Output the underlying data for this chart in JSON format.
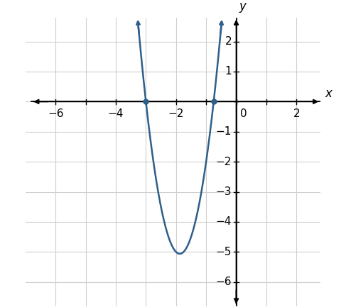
{
  "xlabel": "x",
  "ylabel": "y",
  "xlim": [
    -7.0,
    2.8
  ],
  "ylim": [
    -6.8,
    2.8
  ],
  "x_axis_range": [
    -6.5,
    2.5
  ],
  "y_axis_range": [
    -6.5,
    2.5
  ],
  "xticks": [
    -6,
    -5,
    -4,
    -3,
    -2,
    -1,
    0,
    1,
    2
  ],
  "xtick_labels": [
    "−6",
    "",
    "−4",
    "",
    "−2",
    "",
    "0",
    "",
    "2"
  ],
  "yticks": [
    -6,
    -5,
    -4,
    -3,
    -2,
    -1,
    0,
    1,
    2
  ],
  "ytick_labels": [
    "−6",
    "−5",
    "−4",
    "−3",
    "−2",
    "−1",
    "0",
    "1",
    "2"
  ],
  "curve_color": "#2e5f8a",
  "curve_linewidth": 1.8,
  "intercept1": [
    -3.0,
    0.0
  ],
  "intercept2": [
    -0.75,
    0.0
  ],
  "intercept_color": "#2e5f8a",
  "intercept_size": 5,
  "grid_color": "#d0d0d0",
  "background_color": "#ffffff",
  "axis_color": "#000000",
  "x_curve_min": -3.62,
  "x_curve_max": -0.02,
  "font_size": 11
}
